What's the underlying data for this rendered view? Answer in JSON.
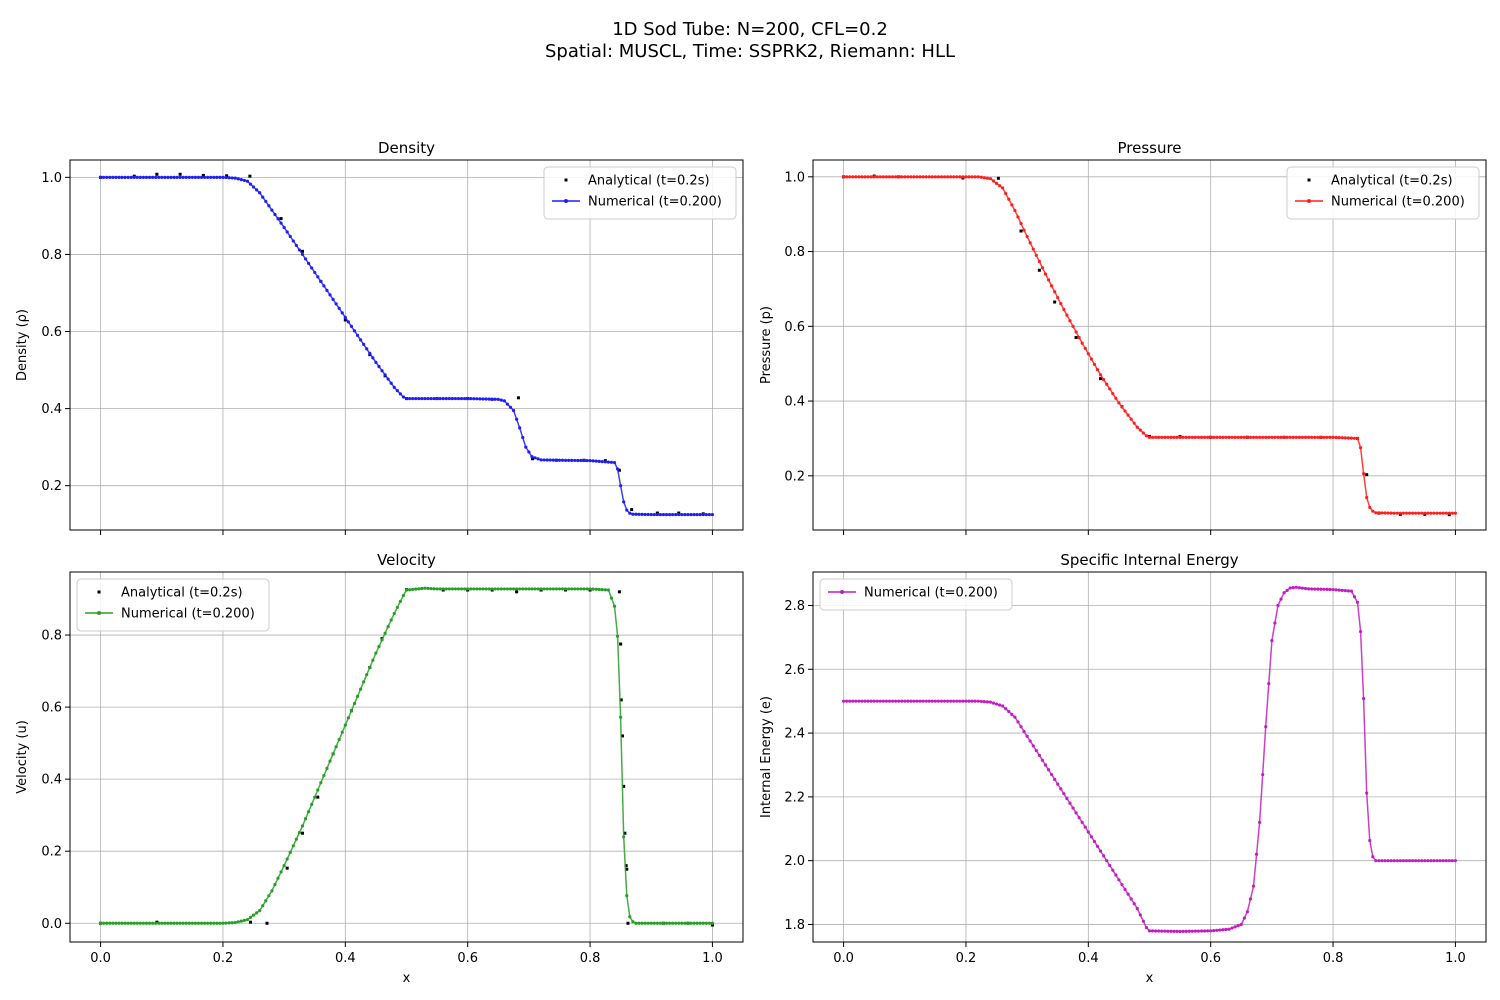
{
  "figure": {
    "suptitle_line1": "1D Sod Tube: N=200, CFL=0.2",
    "suptitle_line2": "Spatial: MUSCL, Time: SSPRK2, Riemann: HLL"
  },
  "chart_data": [
    {
      "id": "density",
      "type": "line",
      "title": "Density",
      "xlabel": "",
      "ylabel": "Density (ρ)",
      "xlim": [
        -0.05,
        1.05
      ],
      "ylim": [
        0.085,
        1.045
      ],
      "xticks": [
        0.0,
        0.2,
        0.4,
        0.6,
        0.8,
        1.0
      ],
      "yticks": [
        0.2,
        0.4,
        0.6,
        0.8,
        1.0
      ],
      "xtick_labels_visible": false,
      "grid": true,
      "legend": "upper right",
      "series": [
        {
          "name": "Analytical (t=0.2s)",
          "kind": "points",
          "color": "#000000",
          "x": [
            0.0,
            0.055,
            0.092,
            0.13,
            0.168,
            0.206,
            0.244,
            0.295,
            0.33,
            0.36,
            0.4,
            0.44,
            0.465,
            0.5,
            0.55,
            0.6,
            0.64,
            0.683,
            0.706,
            0.745,
            0.79,
            0.825,
            0.848,
            0.868,
            0.91,
            0.945,
            0.985
          ],
          "y": [
            1.0,
            1.003,
            1.008,
            1.008,
            1.005,
            1.004,
            1.003,
            0.893,
            0.808,
            0.73,
            0.63,
            0.54,
            0.485,
            0.426,
            0.426,
            0.426,
            0.424,
            0.428,
            0.27,
            0.266,
            0.266,
            0.265,
            0.24,
            0.138,
            0.129,
            0.129,
            0.127
          ]
        },
        {
          "name": "Numerical (t=0.200)",
          "kind": "line",
          "color": "#1f1ff5",
          "x": [
            0.0,
            0.2,
            0.22,
            0.24,
            0.26,
            0.28,
            0.3,
            0.33,
            0.36,
            0.39,
            0.42,
            0.45,
            0.48,
            0.495,
            0.5,
            0.52,
            0.55,
            0.6,
            0.65,
            0.66,
            0.675,
            0.685,
            0.695,
            0.705,
            0.72,
            0.75,
            0.8,
            0.84,
            0.846,
            0.851,
            0.856,
            0.862,
            0.87,
            0.9,
            1.0
          ],
          "y": [
            1.0,
            1.0,
            0.998,
            0.99,
            0.96,
            0.915,
            0.87,
            0.8,
            0.73,
            0.66,
            0.59,
            0.52,
            0.455,
            0.43,
            0.426,
            0.426,
            0.426,
            0.426,
            0.424,
            0.42,
            0.395,
            0.35,
            0.3,
            0.275,
            0.267,
            0.266,
            0.265,
            0.26,
            0.24,
            0.19,
            0.15,
            0.13,
            0.126,
            0.125,
            0.125
          ]
        }
      ]
    },
    {
      "id": "pressure",
      "type": "line",
      "title": "Pressure",
      "xlabel": "",
      "ylabel": "Pressure (p)",
      "xlim": [
        -0.05,
        1.05
      ],
      "ylim": [
        0.055,
        1.045
      ],
      "xticks": [
        0.0,
        0.2,
        0.4,
        0.6,
        0.8,
        1.0
      ],
      "yticks": [
        0.2,
        0.4,
        0.6,
        0.8,
        1.0
      ],
      "xtick_labels_visible": false,
      "grid": true,
      "legend": "upper right",
      "series": [
        {
          "name": "Analytical (t=0.2s)",
          "kind": "points",
          "color": "#000000",
          "x": [
            0.0,
            0.05,
            0.09,
            0.195,
            0.253,
            0.29,
            0.32,
            0.345,
            0.38,
            0.42,
            0.455,
            0.5,
            0.55,
            0.6,
            0.66,
            0.72,
            0.78,
            0.84,
            0.855,
            0.875,
            0.91,
            0.95,
            0.99
          ],
          "y": [
            1.0,
            1.002,
            1.0,
            0.997,
            0.996,
            0.855,
            0.75,
            0.665,
            0.57,
            0.46,
            0.385,
            0.305,
            0.305,
            0.303,
            0.303,
            0.303,
            0.303,
            0.3,
            0.203,
            0.1,
            0.097,
            0.097,
            0.096
          ]
        },
        {
          "name": "Numerical (t=0.200)",
          "kind": "line",
          "color": "#ff1f1f",
          "x": [
            0.0,
            0.22,
            0.24,
            0.26,
            0.28,
            0.3,
            0.33,
            0.36,
            0.39,
            0.42,
            0.45,
            0.48,
            0.495,
            0.5,
            0.55,
            0.6,
            0.7,
            0.8,
            0.84,
            0.846,
            0.851,
            0.856,
            0.862,
            0.87,
            0.9,
            1.0
          ],
          "y": [
            1.0,
            1.0,
            0.995,
            0.97,
            0.91,
            0.84,
            0.74,
            0.645,
            0.555,
            0.47,
            0.395,
            0.33,
            0.307,
            0.303,
            0.303,
            0.303,
            0.303,
            0.303,
            0.3,
            0.27,
            0.19,
            0.13,
            0.108,
            0.101,
            0.1,
            0.1
          ]
        }
      ]
    },
    {
      "id": "velocity",
      "type": "line",
      "title": "Velocity",
      "xlabel": "x",
      "ylabel": "Velocity (u)",
      "xlim": [
        -0.05,
        1.05
      ],
      "ylim": [
        -0.052,
        0.975
      ],
      "xticks": [
        0.0,
        0.2,
        0.4,
        0.6,
        0.8,
        1.0
      ],
      "yticks": [
        0.0,
        0.2,
        0.4,
        0.6,
        0.8
      ],
      "xtick_labels_visible": true,
      "grid": true,
      "legend": "upper left",
      "series": [
        {
          "name": "Analytical (t=0.2s)",
          "kind": "points",
          "color": "#000000",
          "x": [
            0.0,
            0.092,
            0.245,
            0.272,
            0.305,
            0.33,
            0.355,
            0.38,
            0.41,
            0.44,
            0.46,
            0.5,
            0.56,
            0.6,
            0.64,
            0.68,
            0.72,
            0.76,
            0.8,
            0.848,
            0.85,
            0.851,
            0.853,
            0.855,
            0.857,
            0.859,
            0.86,
            0.862,
            0.92,
            0.96,
            1.0
          ],
          "y": [
            0.0,
            0.003,
            0.003,
            0.0,
            0.153,
            0.25,
            0.35,
            0.47,
            0.59,
            0.71,
            0.79,
            0.926,
            0.925,
            0.925,
            0.925,
            0.92,
            0.925,
            0.925,
            0.925,
            0.92,
            0.775,
            0.62,
            0.52,
            0.38,
            0.25,
            0.16,
            0.15,
            0.0,
            0.0,
            0.0,
            -0.005
          ]
        },
        {
          "name": "Numerical (t=0.200)",
          "kind": "line",
          "color": "#279f27",
          "x": [
            0.0,
            0.2,
            0.22,
            0.24,
            0.26,
            0.28,
            0.3,
            0.33,
            0.36,
            0.39,
            0.42,
            0.45,
            0.48,
            0.495,
            0.5,
            0.53,
            0.55,
            0.6,
            0.7,
            0.8,
            0.83,
            0.84,
            0.846,
            0.851,
            0.856,
            0.862,
            0.868,
            0.875,
            0.9,
            1.0
          ],
          "y": [
            0.0,
            0.0,
            0.002,
            0.01,
            0.035,
            0.09,
            0.16,
            0.27,
            0.39,
            0.51,
            0.63,
            0.75,
            0.86,
            0.91,
            0.925,
            0.93,
            0.928,
            0.928,
            0.928,
            0.928,
            0.925,
            0.88,
            0.78,
            0.52,
            0.17,
            0.03,
            0.006,
            0.0,
            0.0,
            0.0
          ]
        }
      ]
    },
    {
      "id": "energy",
      "type": "line",
      "title": "Specific Internal Energy",
      "xlabel": "x",
      "ylabel": "Internal Energy (e)",
      "xlim": [
        -0.05,
        1.05
      ],
      "ylim": [
        1.745,
        2.905
      ],
      "xticks": [
        0.0,
        0.2,
        0.4,
        0.6,
        0.8,
        1.0
      ],
      "yticks": [
        1.8,
        2.0,
        2.2,
        2.4,
        2.6,
        2.8
      ],
      "xtick_labels_visible": true,
      "grid": true,
      "legend": "upper left",
      "series": [
        {
          "name": "Numerical (t=0.200)",
          "kind": "line",
          "color": "#c11ec1",
          "x": [
            0.0,
            0.22,
            0.24,
            0.26,
            0.28,
            0.3,
            0.33,
            0.36,
            0.39,
            0.42,
            0.45,
            0.48,
            0.495,
            0.5,
            0.55,
            0.6,
            0.63,
            0.65,
            0.66,
            0.67,
            0.68,
            0.69,
            0.7,
            0.71,
            0.72,
            0.73,
            0.74,
            0.76,
            0.8,
            0.83,
            0.84,
            0.846,
            0.851,
            0.856,
            0.862,
            0.87,
            0.9,
            1.0
          ],
          "y": [
            2.5,
            2.5,
            2.497,
            2.485,
            2.45,
            2.39,
            2.3,
            2.21,
            2.12,
            2.03,
            1.94,
            1.85,
            1.79,
            1.78,
            1.778,
            1.78,
            1.785,
            1.8,
            1.84,
            1.92,
            2.12,
            2.42,
            2.69,
            2.8,
            2.84,
            2.855,
            2.857,
            2.852,
            2.85,
            2.845,
            2.81,
            2.7,
            2.46,
            2.15,
            2.02,
            2.0,
            2.0,
            2.0
          ]
        }
      ]
    }
  ]
}
